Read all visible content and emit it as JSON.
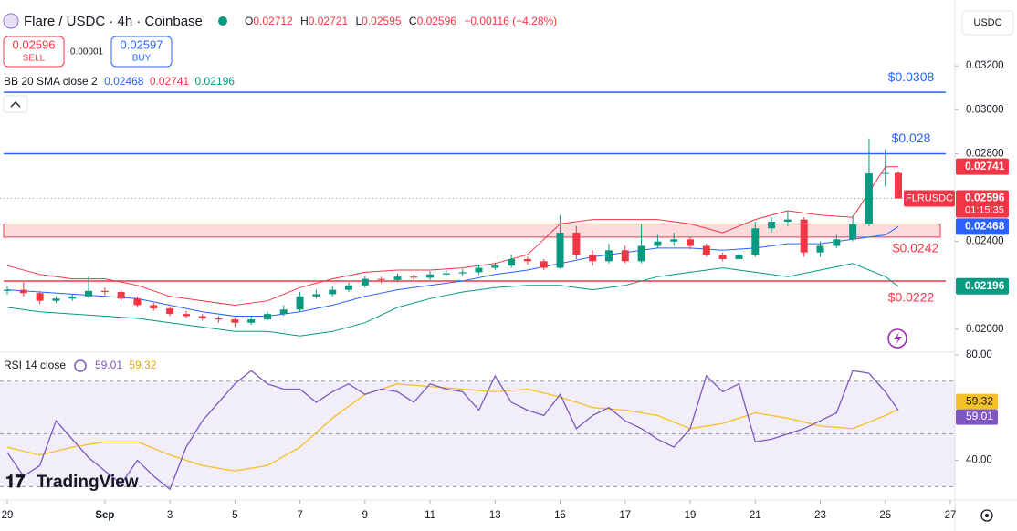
{
  "chart_data": {
    "type": "candlestick",
    "title": "Flare / USDC · 4h · Coinbase",
    "header": {
      "o_label": "O",
      "h_label": "H",
      "l_label": "L",
      "c_label": "C",
      "change": "−0.00116 (−4.28%)"
    },
    "trade": {
      "sell": 0.02596,
      "sell_label": "SELL",
      "spread": 1e-05,
      "buy": 0.02597,
      "buy_label": "BUY"
    },
    "currency": "USDC",
    "symbol": "FLRUSDC",
    "countdown": "01:15:35",
    "branding": "TradingView",
    "up_color": "#089981",
    "down_color": "#f23645",
    "xlim": [
      0,
      29
    ],
    "xticks": [
      {
        "value": 0,
        "label": "29"
      },
      {
        "value": 3,
        "label": "Sep"
      },
      {
        "value": 5,
        "label": "3"
      },
      {
        "value": 7,
        "label": "5"
      },
      {
        "value": 9,
        "label": "7"
      },
      {
        "value": 11,
        "label": "9"
      },
      {
        "value": 13,
        "label": "11"
      },
      {
        "value": 15,
        "label": "13"
      },
      {
        "value": 17,
        "label": "15"
      },
      {
        "value": 19,
        "label": "17"
      },
      {
        "value": 21,
        "label": "19"
      },
      {
        "value": 23,
        "label": "21"
      },
      {
        "value": 25,
        "label": "23"
      },
      {
        "value": 27,
        "label": "25"
      },
      {
        "value": 29,
        "label": "27"
      }
    ],
    "ylim": [
      0.019,
      0.035
    ],
    "yticks": [
      {
        "value": 0.02,
        "label": "0.02000"
      },
      {
        "value": 0.024,
        "label": "0.02400"
      },
      {
        "value": 0.028,
        "label": "0.02800"
      },
      {
        "value": 0.03,
        "label": "0.03000"
      },
      {
        "value": 0.032,
        "label": "0.03200"
      }
    ],
    "grid": false,
    "candles": {
      "x": [
        0,
        0.5,
        1,
        1.5,
        2,
        2.5,
        3,
        3.5,
        4,
        4.5,
        5,
        5.5,
        6,
        6.5,
        7,
        7.5,
        8,
        8.5,
        9,
        9.5,
        10,
        10.5,
        11,
        11.5,
        12,
        12.5,
        13,
        13.5,
        14,
        14.5,
        15,
        15.5,
        16,
        16.5,
        17,
        17.5,
        18,
        18.5,
        19,
        19.5,
        20,
        20.5,
        21,
        21.5,
        22,
        22.5,
        23,
        23.5,
        24,
        24.5,
        25,
        25.5,
        26,
        26.5,
        27,
        27.4
      ],
      "open": [
        0.02175,
        0.0218,
        0.02165,
        0.0213,
        0.0214,
        0.0215,
        0.02175,
        0.0217,
        0.0214,
        0.0211,
        0.02095,
        0.0207,
        0.0206,
        0.0205,
        0.02045,
        0.0203,
        0.02045,
        0.0207,
        0.0209,
        0.0215,
        0.0216,
        0.0218,
        0.022,
        0.0223,
        0.02225,
        0.0224,
        0.02235,
        0.0225,
        0.02255,
        0.0226,
        0.0228,
        0.0229,
        0.0232,
        0.0231,
        0.0228,
        0.0244,
        0.0234,
        0.0231,
        0.0236,
        0.0231,
        0.0238,
        0.024,
        0.0241,
        0.0238,
        0.0234,
        0.0232,
        0.0234,
        0.0246,
        0.0249,
        0.025,
        0.0235,
        0.0238,
        0.0241,
        0.0248,
        0.0271,
        0.02712
      ],
      "high": [
        0.02195,
        0.02215,
        0.02175,
        0.0215,
        0.0216,
        0.0224,
        0.0219,
        0.0218,
        0.0215,
        0.0212,
        0.02105,
        0.02085,
        0.0207,
        0.0206,
        0.02055,
        0.0206,
        0.0208,
        0.0211,
        0.0217,
        0.0218,
        0.02195,
        0.02215,
        0.02245,
        0.0224,
        0.02255,
        0.0225,
        0.02265,
        0.0227,
        0.02275,
        0.02295,
        0.02305,
        0.0234,
        0.0233,
        0.0232,
        0.0252,
        0.0247,
        0.0236,
        0.0239,
        0.0238,
        0.0248,
        0.0243,
        0.0244,
        0.0242,
        0.0239,
        0.0235,
        0.0236,
        0.0249,
        0.0251,
        0.0254,
        0.0251,
        0.024,
        0.0243,
        0.0252,
        0.0287,
        0.0282,
        0.02721
      ],
      "low": [
        0.0216,
        0.0215,
        0.02115,
        0.0212,
        0.0213,
        0.0214,
        0.02155,
        0.0213,
        0.021,
        0.02085,
        0.0206,
        0.0205,
        0.0204,
        0.0203,
        0.0201,
        0.0202,
        0.0204,
        0.0206,
        0.0208,
        0.0214,
        0.0215,
        0.0217,
        0.0219,
        0.0221,
        0.02215,
        0.02225,
        0.02225,
        0.0224,
        0.02245,
        0.0225,
        0.0227,
        0.0228,
        0.02295,
        0.0227,
        0.02275,
        0.0232,
        0.0229,
        0.023,
        0.023,
        0.023,
        0.0237,
        0.0238,
        0.02365,
        0.0233,
        0.0231,
        0.0231,
        0.0233,
        0.0244,
        0.0247,
        0.0233,
        0.0233,
        0.0237,
        0.024,
        0.0247,
        0.0265,
        0.02595
      ],
      "close": [
        0.0218,
        0.02165,
        0.0213,
        0.0214,
        0.0215,
        0.02175,
        0.0217,
        0.0214,
        0.0211,
        0.02095,
        0.0207,
        0.0206,
        0.0205,
        0.02045,
        0.0203,
        0.02045,
        0.0207,
        0.0209,
        0.0215,
        0.0216,
        0.0218,
        0.022,
        0.0223,
        0.02225,
        0.0224,
        0.02235,
        0.0225,
        0.02255,
        0.0226,
        0.0228,
        0.0229,
        0.0232,
        0.0231,
        0.0228,
        0.0244,
        0.0234,
        0.0231,
        0.0236,
        0.0231,
        0.0238,
        0.024,
        0.0241,
        0.0238,
        0.0234,
        0.0232,
        0.0234,
        0.0246,
        0.0249,
        0.025,
        0.0235,
        0.0238,
        0.0241,
        0.0248,
        0.0271,
        0.02712,
        0.02596
      ]
    },
    "bands": {
      "label": "BB 20 SMA close 2",
      "x": [
        0,
        1,
        2,
        3,
        4,
        5,
        6,
        7,
        8,
        9,
        10,
        11,
        12,
        13,
        14,
        15,
        16,
        17,
        18,
        19,
        20,
        21,
        22,
        23,
        24,
        25,
        26,
        27,
        27.4
      ],
      "middle": {
        "color": "#2962ff",
        "values": [
          0.0218,
          0.0217,
          0.0216,
          0.0215,
          0.0214,
          0.0211,
          0.0208,
          0.0206,
          0.0206,
          0.0208,
          0.0211,
          0.0215,
          0.0218,
          0.022,
          0.0222,
          0.0225,
          0.0227,
          0.023,
          0.0233,
          0.0235,
          0.0237,
          0.0237,
          0.0236,
          0.0237,
          0.0239,
          0.0239,
          0.0241,
          0.0243,
          0.02468
        ]
      },
      "upper": {
        "color": "#f23645",
        "values": [
          0.0229,
          0.0225,
          0.0223,
          0.0223,
          0.022,
          0.0215,
          0.0213,
          0.0211,
          0.0213,
          0.0219,
          0.0223,
          0.0226,
          0.0227,
          0.0227,
          0.0228,
          0.023,
          0.0234,
          0.0248,
          0.025,
          0.025,
          0.025,
          0.0248,
          0.0244,
          0.025,
          0.0254,
          0.0252,
          0.0251,
          0.0274,
          0.02741
        ]
      },
      "lower": {
        "color": "#089981",
        "values": [
          0.021,
          0.0208,
          0.0207,
          0.0206,
          0.0205,
          0.0203,
          0.0201,
          0.0199,
          0.0199,
          0.0197,
          0.0199,
          0.0203,
          0.021,
          0.0214,
          0.0217,
          0.0219,
          0.022,
          0.022,
          0.0218,
          0.022,
          0.0224,
          0.0226,
          0.0228,
          0.0226,
          0.0224,
          0.0227,
          0.023,
          0.0224,
          0.02196
        ]
      }
    },
    "levels": [
      {
        "value": 0.0308,
        "label": "$0.0308",
        "color": "#2962ff",
        "side": "above"
      },
      {
        "value": 0.028,
        "label": "$0.028",
        "color": "#2962ff",
        "side": "above"
      },
      {
        "value": 0.0222,
        "label": "$0.0222",
        "color": "#f23645",
        "side": "below"
      }
    ],
    "zone": {
      "low": 0.0242,
      "high": 0.0248,
      "label": "$0.0242",
      "color": "#f23645"
    },
    "rsi": {
      "label": "RSI 14 close",
      "ylim": [
        26,
        81
      ],
      "yticks": [
        {
          "value": 40,
          "label": "40.00"
        },
        {
          "value": 80,
          "label": "80.00"
        }
      ],
      "levels": [
        30,
        50,
        70
      ],
      "line": {
        "color": "#7e57c2",
        "values": [
          43,
          34,
          38,
          55,
          48,
          41,
          36,
          31,
          40,
          34,
          29,
          45,
          55,
          62,
          69,
          74,
          69,
          67,
          67,
          62,
          66,
          69,
          65,
          67,
          66,
          62,
          69,
          67,
          66,
          59,
          72,
          62,
          59,
          57,
          65,
          52,
          57,
          60,
          55,
          52,
          48,
          45,
          52,
          72,
          66,
          69,
          47,
          48,
          50,
          52,
          55,
          58,
          74,
          73,
          66,
          59.01
        ]
      },
      "ma": {
        "color": "#f5c026",
        "values": [
          45,
          42,
          45,
          47,
          47,
          42,
          38,
          36,
          38,
          45,
          56,
          65,
          69,
          68,
          67,
          66,
          67,
          64,
          60,
          59,
          57,
          52,
          54,
          58,
          56,
          53,
          52,
          57,
          59.32
        ]
      }
    }
  }
}
